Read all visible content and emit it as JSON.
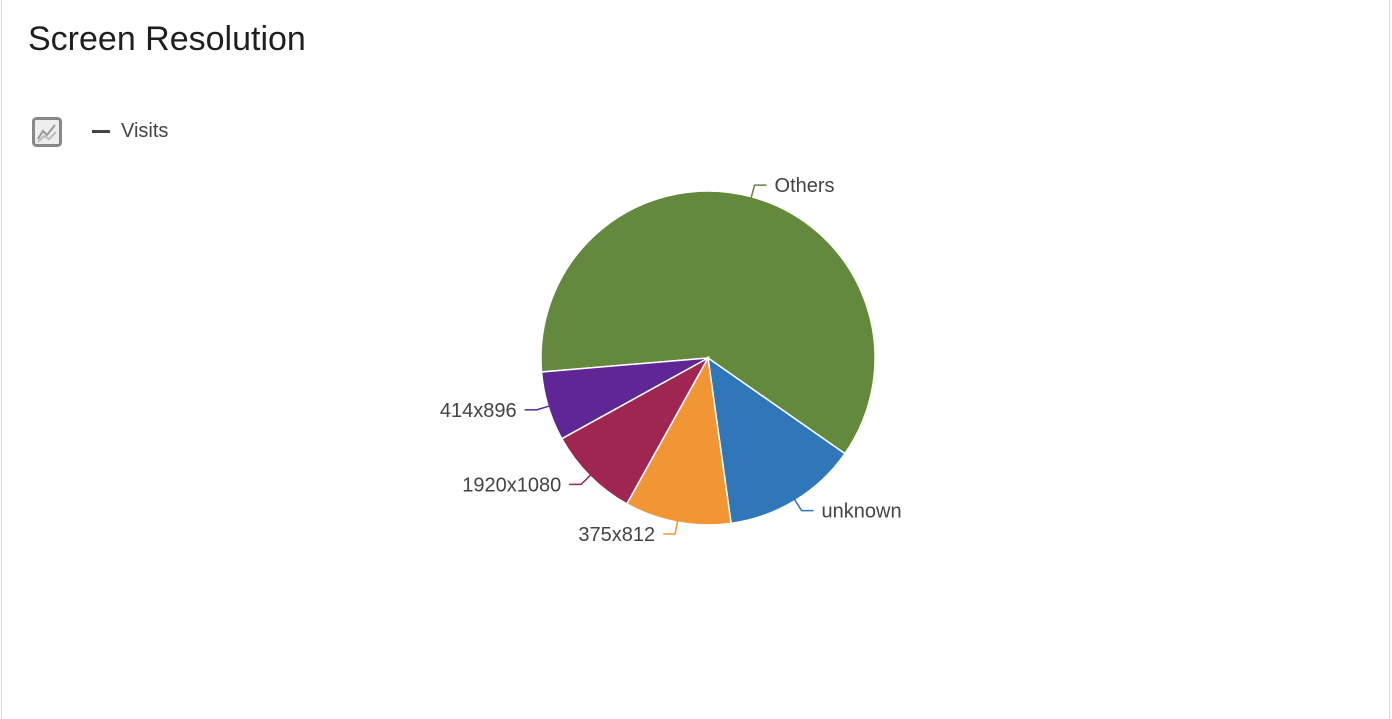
{
  "panel": {
    "title": "Screen Resolution"
  },
  "legend": {
    "icon": "line-chart-icon",
    "items": [
      {
        "label": "Visits",
        "color": "#444444"
      }
    ]
  },
  "chart_data": {
    "type": "pie",
    "series_name": "Visits",
    "slices": [
      {
        "label": "Others",
        "value": 61.1,
        "color": "#62893c"
      },
      {
        "label": "unknown",
        "value": 13.1,
        "color": "#2f77b9"
      },
      {
        "label": "375x812",
        "value": 10.3,
        "color": "#f19535"
      },
      {
        "label": "1920x1080",
        "value": 8.9,
        "color": "#a02652"
      },
      {
        "label": "414x896",
        "value": 6.7,
        "color": "#5f2696"
      }
    ]
  }
}
